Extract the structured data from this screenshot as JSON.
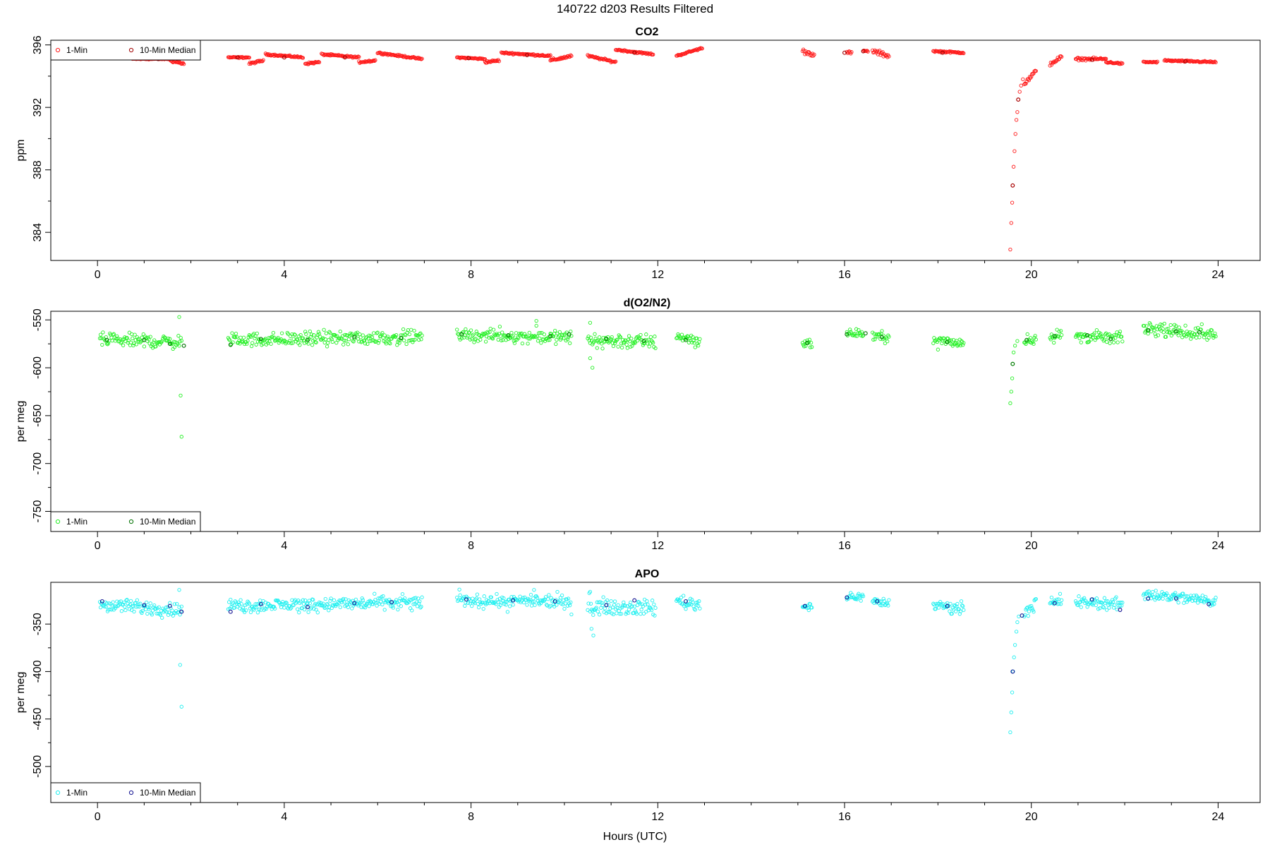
{
  "figure": {
    "title": "140722   d203   Results Filtered",
    "xlabel": "Hours (UTC)"
  },
  "chart_data": [
    {
      "type": "scatter",
      "title": "CO2",
      "ylabel": "ppm",
      "xlim": [
        -1.0,
        24.9
      ],
      "ylim": [
        382.2,
        396.3
      ],
      "xticks": [
        0,
        4,
        8,
        12,
        16,
        20,
        24
      ],
      "yticks": [
        384,
        388,
        392,
        396
      ],
      "legend": {
        "position": "top-left",
        "entries": [
          "1-Min",
          "10-Min Median"
        ]
      },
      "colors": {
        "one_min": "#ff1a1a",
        "median": "#a00000"
      },
      "segments": [
        [
          0.75,
          1.55,
          395.1,
          395.1,
          0.03,
          0
        ],
        [
          1.55,
          1.85,
          395.0,
          394.8,
          0.08,
          0
        ],
        [
          2.8,
          3.25,
          395.2,
          395.2,
          0.04,
          0
        ],
        [
          3.25,
          3.55,
          394.8,
          395.0,
          0.06,
          0
        ],
        [
          3.6,
          4.4,
          395.4,
          395.2,
          0.05,
          0
        ],
        [
          4.45,
          4.75,
          394.8,
          394.9,
          0.06,
          0
        ],
        [
          4.8,
          5.6,
          395.4,
          395.2,
          0.05,
          0
        ],
        [
          5.6,
          5.95,
          394.9,
          395.0,
          0.06,
          0
        ],
        [
          6.0,
          6.95,
          395.5,
          395.1,
          0.05,
          0
        ],
        [
          7.7,
          8.3,
          395.2,
          395.1,
          0.04,
          0
        ],
        [
          8.3,
          8.6,
          394.9,
          395.0,
          0.06,
          0
        ],
        [
          8.65,
          9.7,
          395.5,
          395.3,
          0.05,
          0
        ],
        [
          9.7,
          10.15,
          395.0,
          395.3,
          0.08,
          0
        ],
        [
          10.5,
          11.1,
          395.3,
          394.9,
          0.06,
          0
        ],
        [
          11.1,
          11.9,
          395.7,
          395.4,
          0.05,
          0
        ],
        [
          12.4,
          12.95,
          395.3,
          395.8,
          0.05,
          0
        ],
        [
          15.1,
          15.35,
          395.6,
          395.4,
          0.15,
          0
        ],
        [
          16.05,
          16.15,
          395.5,
          395.5,
          0.1,
          0
        ],
        [
          16.4,
          16.5,
          395.6,
          395.6,
          0.05,
          0
        ],
        [
          16.6,
          16.95,
          395.6,
          395.3,
          0.15,
          0
        ],
        [
          17.9,
          18.55,
          395.6,
          395.5,
          0.05,
          0
        ],
        [
          19.85,
          20.1,
          393.5,
          394.3,
          0.15,
          0
        ],
        [
          20.4,
          20.65,
          394.8,
          395.2,
          0.15,
          0
        ],
        [
          20.95,
          21.6,
          395.1,
          395.1,
          0.08,
          0
        ],
        [
          21.6,
          21.95,
          394.9,
          394.8,
          0.05,
          0
        ],
        [
          22.4,
          22.7,
          394.9,
          394.9,
          0.04,
          0
        ],
        [
          22.85,
          23.95,
          395.0,
          394.9,
          0.05,
          0
        ]
      ],
      "points": [
        [
          19.55,
          382.9
        ],
        [
          19.57,
          384.6
        ],
        [
          19.59,
          385.9
        ],
        [
          19.6,
          387.0
        ],
        [
          19.62,
          388.2
        ],
        [
          19.64,
          389.2
        ],
        [
          19.66,
          390.3
        ],
        [
          19.68,
          391.2
        ],
        [
          19.7,
          391.7
        ],
        [
          19.72,
          392.5
        ],
        [
          19.75,
          393.0
        ],
        [
          19.78,
          393.4
        ],
        [
          19.82,
          393.8
        ]
      ],
      "medians": [
        [
          1.3,
          395.1
        ],
        [
          3.0,
          395.2
        ],
        [
          4.0,
          395.2
        ],
        [
          5.3,
          395.2
        ],
        [
          7.95,
          395.15
        ],
        [
          9.2,
          395.35
        ],
        [
          11.5,
          395.5
        ],
        [
          16.0,
          395.5
        ],
        [
          16.4,
          395.6
        ],
        [
          18.1,
          395.5
        ],
        [
          19.6,
          387.0
        ],
        [
          19.72,
          392.5
        ],
        [
          21.3,
          395.05
        ],
        [
          23.3,
          394.95
        ]
      ]
    },
    {
      "type": "scatter",
      "title": "d(O2/N2)",
      "ylabel": "per meg",
      "xlim": [
        -1.0,
        24.9
      ],
      "ylim": [
        -771,
        -541
      ],
      "xticks": [
        0,
        4,
        8,
        12,
        16,
        20,
        24
      ],
      "yticks": [
        -550,
        -600,
        -650,
        -700,
        -750
      ],
      "legend": {
        "position": "bottom-left",
        "entries": [
          "1-Min",
          "10-Min Median"
        ]
      },
      "colors": {
        "one_min": "#26f026",
        "median": "#007000"
      },
      "segments": [
        [
          0.05,
          1.8,
          -571,
          -573,
          7,
          7
        ],
        [
          2.8,
          6.95,
          -571,
          -568,
          7,
          4
        ],
        [
          7.7,
          10.15,
          -566,
          -568,
          6,
          11
        ],
        [
          10.5,
          11.95,
          -571,
          -573,
          8,
          7
        ],
        [
          12.4,
          12.9,
          -566,
          -573,
          7,
          9
        ],
        [
          15.1,
          15.3,
          -574,
          -574,
          4,
          4
        ],
        [
          16.05,
          16.4,
          -565,
          -564,
          4,
          3
        ],
        [
          16.6,
          16.95,
          -567,
          -568,
          5,
          6
        ],
        [
          17.9,
          18.55,
          -572,
          -574,
          6,
          8
        ],
        [
          19.85,
          20.1,
          -573,
          -568,
          6,
          5
        ],
        [
          20.4,
          20.65,
          -567,
          -566,
          5,
          5
        ],
        [
          20.95,
          21.95,
          -567,
          -569,
          6,
          6
        ],
        [
          22.4,
          23.95,
          -559,
          -566,
          6,
          6
        ]
      ],
      "points": [
        [
          1.75,
          -547
        ],
        [
          1.78,
          -629
        ],
        [
          1.8,
          -672
        ],
        [
          9.4,
          -551
        ],
        [
          10.55,
          -553
        ],
        [
          10.55,
          -590
        ],
        [
          10.6,
          -600
        ],
        [
          19.55,
          -637
        ],
        [
          19.57,
          -625
        ],
        [
          19.59,
          -611
        ],
        [
          19.6,
          -596
        ],
        [
          19.62,
          -584
        ],
        [
          19.65,
          -577
        ],
        [
          19.7,
          -572
        ]
      ],
      "medians": [
        [
          0.2,
          -571
        ],
        [
          1.0,
          -571
        ],
        [
          1.55,
          -575
        ],
        [
          1.85,
          -577
        ],
        [
          2.85,
          -576
        ],
        [
          3.5,
          -570
        ],
        [
          4.5,
          -571
        ],
        [
          5.5,
          -568
        ],
        [
          6.5,
          -569
        ],
        [
          7.8,
          -565
        ],
        [
          8.8,
          -566
        ],
        [
          9.7,
          -567
        ],
        [
          10.1,
          -565
        ],
        [
          10.9,
          -570
        ],
        [
          11.7,
          -572
        ],
        [
          12.6,
          -571
        ],
        [
          15.2,
          -574
        ],
        [
          16.05,
          -565
        ],
        [
          16.45,
          -564
        ],
        [
          16.8,
          -568
        ],
        [
          18.2,
          -573
        ],
        [
          19.6,
          -596
        ],
        [
          19.9,
          -571
        ],
        [
          20.5,
          -567
        ],
        [
          21.2,
          -566
        ],
        [
          21.7,
          -570
        ],
        [
          22.5,
          -561
        ],
        [
          23.1,
          -562
        ],
        [
          23.6,
          -563
        ]
      ]
    },
    {
      "type": "scatter",
      "title": "APO",
      "ylabel": "per meg",
      "xlim": [
        -1.0,
        24.9
      ],
      "ylim": [
        -538,
        -306
      ],
      "xticks": [
        0,
        4,
        8,
        12,
        16,
        20,
        24
      ],
      "yticks": [
        -350,
        -400,
        -450,
        -500
      ],
      "legend": {
        "position": "bottom-left",
        "entries": [
          "1-Min",
          "10-Min Median"
        ]
      },
      "colors": {
        "one_min": "#20f0f0",
        "median": "#101090"
      },
      "segments": [
        [
          0.05,
          1.8,
          -330,
          -335,
          7,
          6
        ],
        [
          2.8,
          6.95,
          -331,
          -327,
          7,
          5
        ],
        [
          7.7,
          10.15,
          -325,
          -327,
          6,
          11
        ],
        [
          10.5,
          11.95,
          -331,
          -333,
          8,
          8
        ],
        [
          12.4,
          12.9,
          -325,
          -330,
          7,
          8
        ],
        [
          15.1,
          15.3,
          -331,
          -331,
          4,
          4
        ],
        [
          16.05,
          16.4,
          -322,
          -321,
          4,
          3
        ],
        [
          16.6,
          16.95,
          -326,
          -328,
          5,
          6
        ],
        [
          17.9,
          18.55,
          -330,
          -333,
          6,
          7
        ],
        [
          19.85,
          20.1,
          -337,
          -329,
          6,
          5
        ],
        [
          20.4,
          20.65,
          -329,
          -326,
          5,
          5
        ],
        [
          20.95,
          21.95,
          -327,
          -329,
          6,
          6
        ],
        [
          22.4,
          23.95,
          -318,
          -326,
          6,
          6
        ]
      ],
      "points": [
        [
          1.75,
          -314
        ],
        [
          1.77,
          -393
        ],
        [
          1.8,
          -437
        ],
        [
          9.35,
          -314
        ],
        [
          10.55,
          -316
        ],
        [
          10.58,
          -355
        ],
        [
          10.62,
          -362
        ],
        [
          19.55,
          -464
        ],
        [
          19.57,
          -443
        ],
        [
          19.59,
          -422
        ],
        [
          19.61,
          -400
        ],
        [
          19.63,
          -385
        ],
        [
          19.65,
          -372
        ],
        [
          19.68,
          -358
        ],
        [
          19.7,
          -348
        ],
        [
          19.73,
          -342
        ]
      ],
      "medians": [
        [
          0.1,
          -326
        ],
        [
          1.0,
          -330
        ],
        [
          1.55,
          -331
        ],
        [
          1.8,
          -337
        ],
        [
          2.85,
          -337
        ],
        [
          3.5,
          -329
        ],
        [
          4.5,
          -332
        ],
        [
          5.5,
          -328
        ],
        [
          6.3,
          -327
        ],
        [
          7.9,
          -324
        ],
        [
          8.9,
          -325
        ],
        [
          9.8,
          -326
        ],
        [
          10.9,
          -330
        ],
        [
          11.5,
          -325
        ],
        [
          12.6,
          -326
        ],
        [
          15.15,
          -331
        ],
        [
          16.05,
          -322
        ],
        [
          16.7,
          -326
        ],
        [
          18.2,
          -331
        ],
        [
          19.6,
          -400
        ],
        [
          19.8,
          -341
        ],
        [
          20.5,
          -328
        ],
        [
          21.3,
          -324
        ],
        [
          21.9,
          -335
        ],
        [
          22.5,
          -323
        ],
        [
          23.1,
          -323
        ],
        [
          23.8,
          -329
        ]
      ]
    }
  ]
}
